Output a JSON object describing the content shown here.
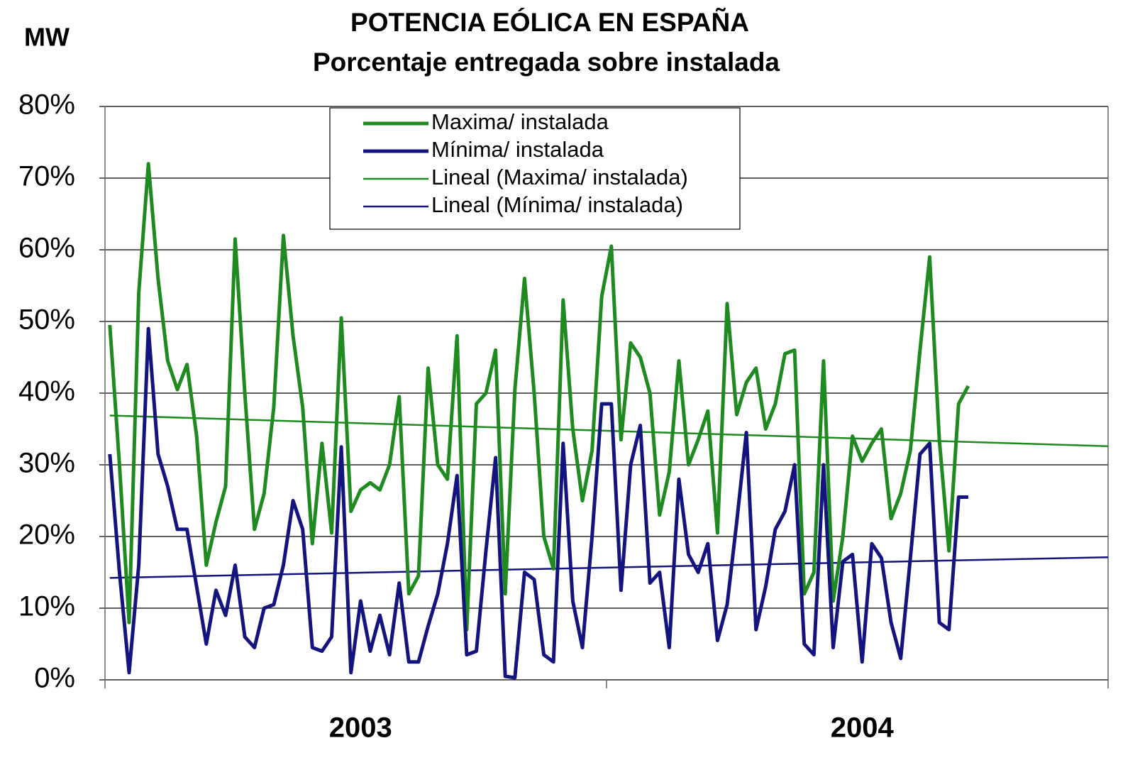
{
  "chart_data": {
    "type": "line",
    "title": "POTENCIA EÓLICA EN ESPAÑA",
    "subtitle": "Porcentaje entregada sobre instalada",
    "ylabel": "MW",
    "categories": [
      null,
      null,
      null,
      null,
      null,
      null,
      null,
      null,
      null,
      null,
      null,
      null,
      null,
      null,
      null,
      null,
      null,
      null,
      null,
      null,
      null,
      null,
      null,
      null,
      null,
      null,
      "2003",
      null,
      null,
      null,
      null,
      null,
      null,
      null,
      null,
      null,
      null,
      null,
      null,
      null,
      null,
      null,
      null,
      null,
      null,
      null,
      null,
      null,
      null,
      null,
      null,
      null,
      null,
      null,
      null,
      null,
      null,
      null,
      null,
      null,
      null,
      null,
      null,
      null,
      null,
      null,
      null,
      null,
      null,
      null,
      null,
      null,
      null,
      null,
      null,
      null,
      null,
      null,
      "2004",
      null,
      null,
      null,
      null,
      null,
      null,
      null,
      null,
      null,
      null,
      null,
      null,
      null,
      null,
      null,
      null,
      null,
      null,
      null,
      null,
      null,
      null,
      null,
      null,
      null
    ],
    "series": [
      {
        "name": "Maxima/ instalada",
        "trendline_name": "Lineal (Maxima/ instalada)",
        "color": "#1f8a1f",
        "values": [
          49.5,
          30,
          8,
          54,
          72,
          56,
          44.5,
          40.5,
          44,
          34,
          16,
          22,
          27,
          61.5,
          40,
          21,
          26,
          38,
          62,
          48,
          38,
          19,
          33,
          20.5,
          50.5,
          23.5,
          26.5,
          27.5,
          26.5,
          30,
          39.5,
          12,
          14.5,
          43.5,
          30,
          28,
          48,
          7,
          38.5,
          40,
          46,
          12,
          40.5,
          56,
          40,
          20,
          15.5,
          53,
          35,
          25,
          32,
          53.5,
          60.5,
          33.5,
          47,
          45,
          40,
          23,
          29,
          44.5,
          30,
          33.5,
          37.5,
          20.5,
          52.5,
          37,
          41.5,
          43.5,
          35,
          38.5,
          45.5,
          46,
          12,
          15,
          44.5,
          11,
          20,
          34,
          30.5,
          33,
          35,
          22.5,
          26,
          32,
          46,
          59,
          33.5,
          18,
          38.5,
          41,
          null,
          null,
          null,
          null,
          null,
          null,
          null,
          null,
          null,
          null,
          null,
          null,
          null,
          null
        ]
      },
      {
        "name": "Mínima/ instalada",
        "trendline_name": "Lineal (Mínima/ instalada)",
        "color": "#14147f",
        "values": [
          31.5,
          15,
          1,
          16,
          49,
          31.5,
          27,
          21,
          21,
          13,
          5,
          12.5,
          9,
          16,
          6,
          4.5,
          10,
          10.5,
          16,
          25,
          21,
          4.5,
          4,
          6,
          32.5,
          1,
          11,
          4,
          9,
          3.5,
          13.5,
          2.5,
          2.5,
          7.5,
          12,
          19,
          28.5,
          3.5,
          4,
          18,
          31,
          0.5,
          0.3,
          15,
          14,
          3.5,
          2.5,
          33,
          11,
          4.5,
          20,
          38.5,
          38.5,
          12.5,
          30,
          35.5,
          13.5,
          15,
          4.5,
          28,
          17.5,
          15,
          19,
          5.5,
          10.5,
          22,
          34.5,
          7,
          13,
          21,
          23.5,
          30,
          5,
          3.5,
          30,
          4.5,
          16.5,
          17.5,
          2.5,
          19,
          17,
          8,
          3,
          17,
          31.5,
          33,
          8,
          7,
          25.5,
          25.5,
          null,
          null,
          null,
          null,
          null,
          null,
          null,
          null,
          null,
          null,
          null,
          null,
          null,
          null
        ]
      }
    ],
    "ylim": [
      0,
      80
    ],
    "yticks": [
      {
        "value": 0,
        "label": "0%"
      },
      {
        "value": 10,
        "label": "10%"
      },
      {
        "value": 20,
        "label": "20%"
      },
      {
        "value": 30,
        "label": "30%"
      },
      {
        "value": 40,
        "label": "40%"
      },
      {
        "value": 50,
        "label": "50%"
      },
      {
        "value": 60,
        "label": "60%"
      },
      {
        "value": 70,
        "label": "70%"
      },
      {
        "value": 80,
        "label": "80%"
      }
    ],
    "grid": true,
    "trendlines": true
  }
}
